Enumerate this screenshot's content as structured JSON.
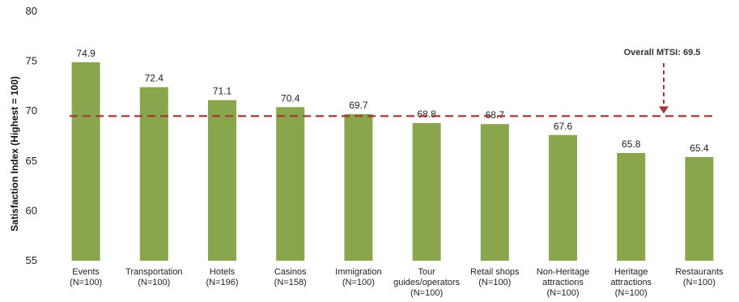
{
  "chart_data": {
    "type": "bar",
    "title": "",
    "xlabel": "",
    "ylabel": "Satisfaction Index (Highest = 100)",
    "ylim": [
      55,
      80
    ],
    "yticks": [
      55,
      60,
      65,
      70,
      75,
      80
    ],
    "grid": false,
    "categories": [
      [
        "Events",
        "(N=100)"
      ],
      [
        "Transportation",
        "(N=100)"
      ],
      [
        "Hotels",
        "(N=196)"
      ],
      [
        "Casinos",
        "(N=158)"
      ],
      [
        "Immigration",
        "(N=100)"
      ],
      [
        "Tour",
        "guides/operators",
        "(N=100)"
      ],
      [
        "Retail shops",
        "(N=100)"
      ],
      [
        "Non-Heritage",
        "attractions",
        "(N=100)"
      ],
      [
        "Heritage",
        "attractions",
        "(N=100)"
      ],
      [
        "Restaurants",
        "(N=100)"
      ]
    ],
    "values": [
      74.9,
      72.4,
      71.1,
      70.4,
      69.7,
      68.8,
      68.7,
      67.6,
      65.8,
      65.4
    ],
    "value_labels": [
      "74.9",
      "72.4",
      "71.1",
      "70.4",
      "69.7",
      "68.8",
      "68.7",
      "67.6",
      "65.8",
      "65.4"
    ],
    "reference_line": {
      "value": 69.5,
      "label": "Overall MTSI: 69.5",
      "style": "dashed"
    },
    "colors": {
      "bar": "#8aa64d",
      "reference": "#a03a36",
      "axis": "#555555"
    }
  }
}
